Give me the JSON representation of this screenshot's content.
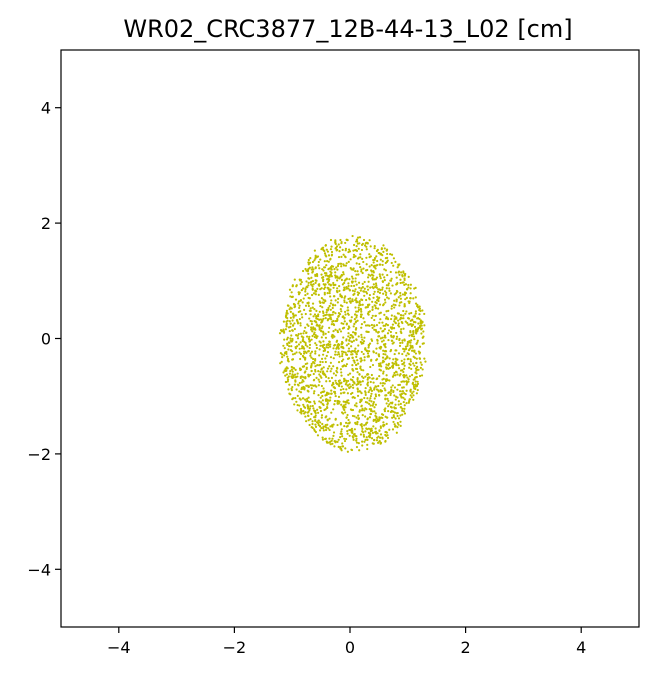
{
  "chart_data": {
    "type": "scatter",
    "title": "WR02_CRC3877_12B-44-13_L02 [cm]",
    "xlabel": "",
    "ylabel": "",
    "xlim": [
      -5,
      5
    ],
    "ylim": [
      -5,
      5
    ],
    "x_ticks": [
      -4,
      -2,
      0,
      2,
      4
    ],
    "y_ticks": [
      -4,
      -2,
      0,
      2,
      4
    ],
    "x_tick_labels": [
      "−4",
      "−2",
      "0",
      "2",
      "4"
    ],
    "y_tick_labels": [
      "−4",
      "−2",
      "0",
      "2",
      "4"
    ],
    "grid": false,
    "legend": "none",
    "marker_color": "#bfbf00",
    "series": [
      {
        "distribution": "filled ellipse",
        "x_range": [
          -1.2,
          1.3
        ],
        "y_range": [
          -1.85,
          1.85
        ],
        "center": [
          0.05,
          -0.1
        ],
        "point_count": 2400
      }
    ]
  }
}
